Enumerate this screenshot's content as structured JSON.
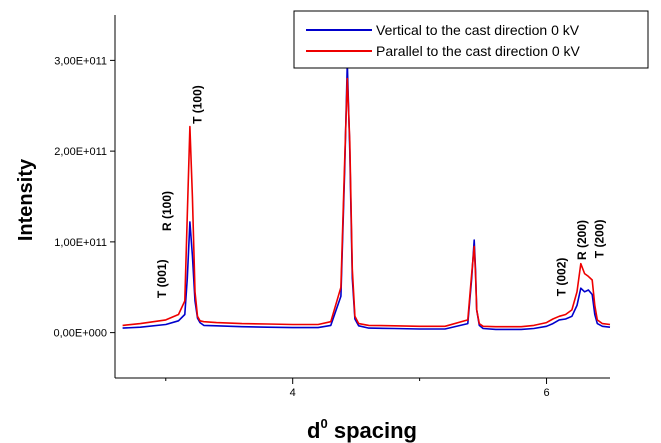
{
  "chart_data": {
    "type": "line",
    "xlabel": "d",
    "xlabel_superscript": "0",
    "xlabel_suffix": " spacing",
    "ylabel": "Intensity",
    "xlim": [
      2.6,
      6.5
    ],
    "ylim": [
      -50000000000,
      350000000000
    ],
    "x_ticks": [
      {
        "value": 4,
        "label": "4"
      },
      {
        "value": 6,
        "label": "6"
      }
    ],
    "x_minor_ticks": [
      3,
      5
    ],
    "y_ticks": [
      {
        "value": 0,
        "label": "0,00E+000"
      },
      {
        "value": 100000000000,
        "label": "1,00E+011"
      },
      {
        "value": 200000000000,
        "label": "2,00E+011"
      },
      {
        "value": 300000000000,
        "label": "3,00E+011"
      }
    ],
    "grid": false,
    "legend_position": "top-right",
    "series": [
      {
        "name": "Vertical to the cast direction 0 kV",
        "color": "#0000cc",
        "x": [
          2.66,
          2.8,
          3.0,
          3.1,
          3.15,
          3.17,
          3.19,
          3.21,
          3.23,
          3.25,
          3.27,
          3.3,
          3.4,
          3.6,
          3.8,
          4.0,
          4.2,
          4.3,
          4.38,
          4.41,
          4.43,
          4.45,
          4.47,
          4.49,
          4.52,
          4.6,
          4.8,
          5.0,
          5.2,
          5.38,
          5.41,
          5.43,
          5.44,
          5.45,
          5.47,
          5.5,
          5.6,
          5.8,
          5.9,
          6.0,
          6.05,
          6.1,
          6.15,
          6.2,
          6.24,
          6.27,
          6.3,
          6.33,
          6.36,
          6.38,
          6.4,
          6.44,
          6.5
        ],
        "y": [
          5000000000,
          6000000000,
          9000000000,
          13000000000,
          20000000000,
          60000000000,
          122000000000,
          85000000000,
          35000000000,
          16000000000,
          11000000000,
          8000000000,
          7500000000,
          6500000000,
          6000000000,
          5500000000,
          5500000000,
          8000000000,
          40000000000,
          180000000000,
          297000000000,
          200000000000,
          60000000000,
          15000000000,
          7500000000,
          5000000000,
          4500000000,
          4000000000,
          4000000000,
          10000000000,
          60000000000,
          102000000000,
          70000000000,
          25000000000,
          8000000000,
          4500000000,
          3500000000,
          3500000000,
          4500000000,
          7000000000,
          10000000000,
          14000000000,
          15000000000,
          18000000000,
          30000000000,
          49000000000,
          45000000000,
          47000000000,
          42000000000,
          20000000000,
          10000000000,
          7000000000,
          6000000000
        ]
      },
      {
        "name": "Parallel to the cast direction 0 kV",
        "color": "#ee0000",
        "x": [
          2.66,
          2.8,
          3.0,
          3.1,
          3.15,
          3.17,
          3.19,
          3.21,
          3.23,
          3.25,
          3.27,
          3.3,
          3.4,
          3.6,
          3.8,
          4.0,
          4.2,
          4.3,
          4.38,
          4.41,
          4.43,
          4.45,
          4.47,
          4.49,
          4.52,
          4.6,
          4.8,
          5.0,
          5.2,
          5.38,
          5.41,
          5.43,
          5.44,
          5.45,
          5.47,
          5.5,
          5.6,
          5.8,
          5.9,
          6.0,
          6.05,
          6.1,
          6.15,
          6.2,
          6.24,
          6.27,
          6.3,
          6.33,
          6.36,
          6.38,
          6.4,
          6.44,
          6.5
        ],
        "y": [
          8000000000,
          10000000000,
          14000000000,
          20000000000,
          35000000000,
          130000000000,
          227000000000,
          150000000000,
          45000000000,
          18000000000,
          13000000000,
          12000000000,
          11000000000,
          10000000000,
          9500000000,
          9000000000,
          9000000000,
          12000000000,
          50000000000,
          190000000000,
          280000000000,
          210000000000,
          70000000000,
          18000000000,
          10000000000,
          8000000000,
          7500000000,
          7000000000,
          7000000000,
          14000000000,
          65000000000,
          95000000000,
          65000000000,
          25000000000,
          10000000000,
          7000000000,
          6500000000,
          6500000000,
          8000000000,
          11000000000,
          15000000000,
          18000000000,
          20000000000,
          25000000000,
          45000000000,
          76000000000,
          65000000000,
          62000000000,
          58000000000,
          30000000000,
          14000000000,
          10000000000,
          9000000000
        ]
      }
    ],
    "annotations": [
      {
        "text": "T (001)",
        "x": 3.0,
        "y": 38000000000
      },
      {
        "text": "R (100)",
        "x": 3.04,
        "y": 112000000000
      },
      {
        "text": "T (100)",
        "x": 3.28,
        "y": 230000000000
      },
      {
        "text": "T (002)",
        "x": 6.15,
        "y": 40000000000
      },
      {
        "text": "R (200)",
        "x": 6.31,
        "y": 80000000000
      },
      {
        "text": "T (200)",
        "x": 6.45,
        "y": 82000000000
      }
    ]
  }
}
